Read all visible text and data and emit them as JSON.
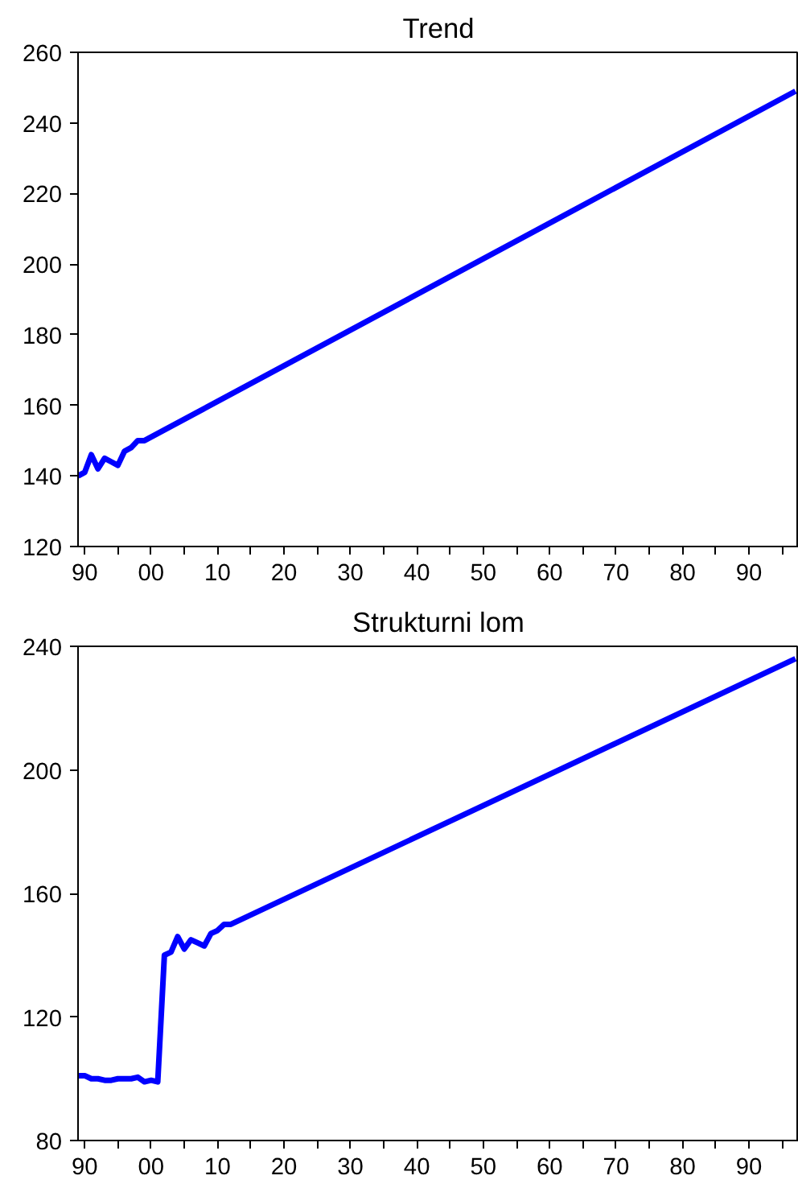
{
  "chart_data": [
    {
      "type": "line",
      "title": "Trend",
      "x": [
        1989,
        1990,
        1991,
        1992,
        1993,
        1994,
        1995,
        1996,
        1997,
        1998,
        1999,
        2097
      ],
      "series": [
        {
          "color": "#0000ff",
          "values": [
            140,
            141,
            146,
            142,
            145,
            144,
            143,
            147,
            148,
            150,
            150,
            249
          ]
        }
      ],
      "xlim": [
        1989,
        2097.5
      ],
      "ylim": [
        120,
        260
      ],
      "xticks": [
        {
          "value": 1990,
          "label": "90"
        },
        {
          "value": 1995,
          "label": null
        },
        {
          "value": 2000,
          "label": "00"
        },
        {
          "value": 2005,
          "label": null
        },
        {
          "value": 2010,
          "label": "10"
        },
        {
          "value": 2015,
          "label": null
        },
        {
          "value": 2020,
          "label": "20"
        },
        {
          "value": 2025,
          "label": null
        },
        {
          "value": 2030,
          "label": "30"
        },
        {
          "value": 2035,
          "label": null
        },
        {
          "value": 2040,
          "label": "40"
        },
        {
          "value": 2045,
          "label": null
        },
        {
          "value": 2050,
          "label": "50"
        },
        {
          "value": 2055,
          "label": null
        },
        {
          "value": 2060,
          "label": "60"
        },
        {
          "value": 2065,
          "label": null
        },
        {
          "value": 2070,
          "label": "70"
        },
        {
          "value": 2075,
          "label": null
        },
        {
          "value": 2080,
          "label": "80"
        },
        {
          "value": 2085,
          "label": null
        },
        {
          "value": 2090,
          "label": "90"
        },
        {
          "value": 2095,
          "label": null
        }
      ],
      "yticks": [
        120,
        140,
        160,
        180,
        200,
        220,
        240,
        260
      ],
      "grid": false
    },
    {
      "type": "line",
      "title": "Strukturni lom",
      "x": [
        1989,
        1990,
        1991,
        1992,
        1993,
        1994,
        1995,
        1996,
        1997,
        1998,
        1999,
        2000,
        2001,
        2002,
        2003,
        2004,
        2005,
        2006,
        2007,
        2008,
        2009,
        2010,
        2011,
        2012,
        2097
      ],
      "series": [
        {
          "color": "#0000ff",
          "values": [
            101,
            101,
            100,
            100,
            99.5,
            99.5,
            100,
            100,
            100,
            100.5,
            99,
            99.5,
            99,
            140,
            141,
            146,
            142,
            145,
            144,
            143,
            147,
            148,
            150,
            150,
            236
          ]
        }
      ],
      "xlim": [
        1989,
        2097.5
      ],
      "ylim": [
        80,
        240
      ],
      "xticks": [
        {
          "value": 1990,
          "label": "90"
        },
        {
          "value": 1995,
          "label": null
        },
        {
          "value": 2000,
          "label": "00"
        },
        {
          "value": 2005,
          "label": null
        },
        {
          "value": 2010,
          "label": "10"
        },
        {
          "value": 2015,
          "label": null
        },
        {
          "value": 2020,
          "label": "20"
        },
        {
          "value": 2025,
          "label": null
        },
        {
          "value": 2030,
          "label": "30"
        },
        {
          "value": 2035,
          "label": null
        },
        {
          "value": 2040,
          "label": "40"
        },
        {
          "value": 2045,
          "label": null
        },
        {
          "value": 2050,
          "label": "50"
        },
        {
          "value": 2055,
          "label": null
        },
        {
          "value": 2060,
          "label": "60"
        },
        {
          "value": 2065,
          "label": null
        },
        {
          "value": 2070,
          "label": "70"
        },
        {
          "value": 2075,
          "label": null
        },
        {
          "value": 2080,
          "label": "80"
        },
        {
          "value": 2085,
          "label": null
        },
        {
          "value": 2090,
          "label": "90"
        },
        {
          "value": 2095,
          "label": null
        }
      ],
      "yticks": [
        80,
        120,
        160,
        200,
        240
      ],
      "grid": false
    }
  ]
}
